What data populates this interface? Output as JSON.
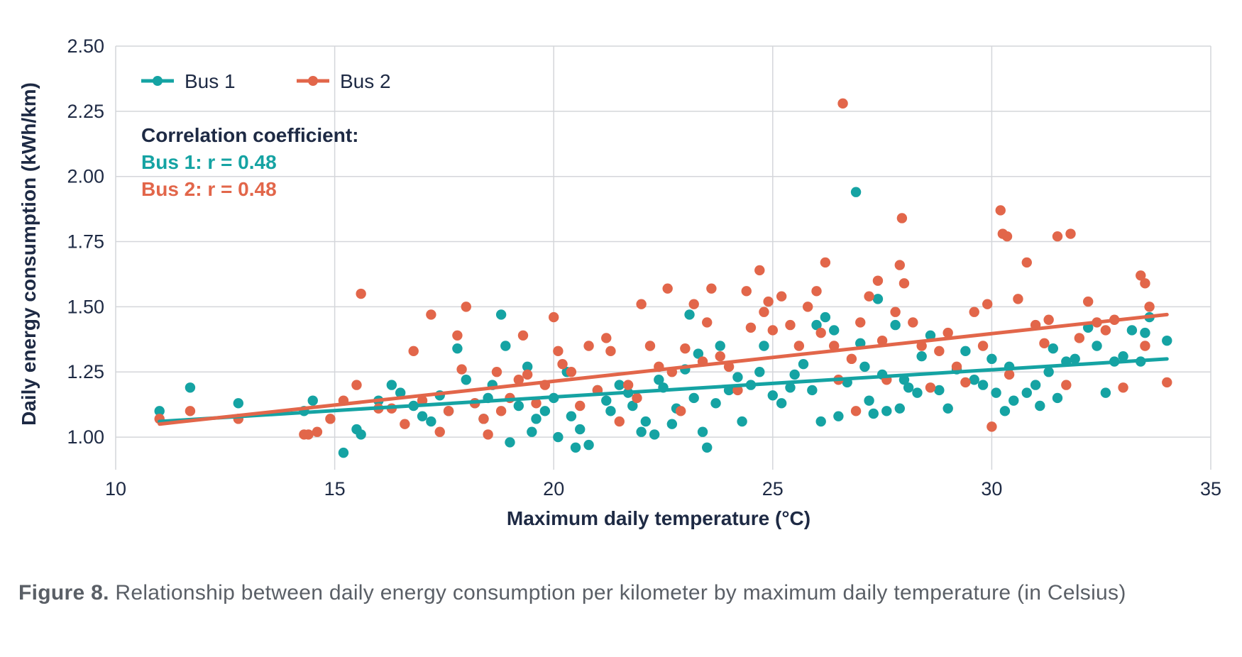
{
  "caption": {
    "label": "Figure 8.",
    "text": " Relationship between daily energy consumption per kilometer by maximum daily temperature (in Celsius)"
  },
  "annotation": {
    "heading": "Correlation coefficient:",
    "bus1": "Bus 1: r = 0.48",
    "bus2": "Bus 2: r = 0.48"
  },
  "chart_data": {
    "type": "scatter",
    "xlabel": "Maximum daily temperature (°C)",
    "ylabel": "Daily energy consumption (kWh/km)",
    "xlim": [
      10,
      35
    ],
    "ylim": [
      0.875,
      2.5
    ],
    "x_ticks": [
      "10",
      "15",
      "20",
      "25",
      "30",
      "35"
    ],
    "y_ticks": [
      "1.00",
      "1.25",
      "1.50",
      "1.75",
      "2.00",
      "2.25",
      "2.50"
    ],
    "grid": true,
    "legend_position": "top-left",
    "series": [
      {
        "name": "Bus 1",
        "color": "#15a3a3",
        "trend": [
          [
            11.0,
            1.06
          ],
          [
            34.0,
            1.3
          ]
        ],
        "points": [
          [
            11.0,
            1.1
          ],
          [
            11.7,
            1.19
          ],
          [
            12.8,
            1.13
          ],
          [
            14.3,
            1.1
          ],
          [
            14.5,
            1.14
          ],
          [
            15.2,
            0.94
          ],
          [
            15.5,
            1.03
          ],
          [
            15.6,
            1.01
          ],
          [
            16.0,
            1.14
          ],
          [
            16.3,
            1.2
          ],
          [
            16.5,
            1.17
          ],
          [
            16.8,
            1.12
          ],
          [
            17.0,
            1.08
          ],
          [
            17.2,
            1.06
          ],
          [
            17.4,
            1.16
          ],
          [
            17.6,
            1.1
          ],
          [
            17.8,
            1.34
          ],
          [
            18.0,
            1.22
          ],
          [
            18.2,
            1.13
          ],
          [
            18.4,
            1.07
          ],
          [
            18.5,
            1.15
          ],
          [
            18.6,
            1.2
          ],
          [
            18.8,
            1.47
          ],
          [
            18.9,
            1.35
          ],
          [
            19.0,
            0.98
          ],
          [
            19.2,
            1.12
          ],
          [
            19.4,
            1.27
          ],
          [
            19.5,
            1.02
          ],
          [
            19.6,
            1.07
          ],
          [
            19.8,
            1.1
          ],
          [
            20.0,
            1.15
          ],
          [
            20.1,
            1.0
          ],
          [
            20.3,
            1.25
          ],
          [
            20.4,
            1.08
          ],
          [
            20.5,
            0.96
          ],
          [
            20.6,
            1.03
          ],
          [
            20.8,
            0.97
          ],
          [
            21.0,
            1.18
          ],
          [
            21.2,
            1.14
          ],
          [
            21.3,
            1.1
          ],
          [
            21.5,
            1.2
          ],
          [
            21.7,
            1.17
          ],
          [
            21.8,
            1.12
          ],
          [
            22.0,
            1.02
          ],
          [
            22.1,
            1.06
          ],
          [
            22.3,
            1.01
          ],
          [
            22.4,
            1.22
          ],
          [
            22.5,
            1.19
          ],
          [
            22.7,
            1.05
          ],
          [
            22.8,
            1.11
          ],
          [
            23.0,
            1.26
          ],
          [
            23.1,
            1.47
          ],
          [
            23.2,
            1.15
          ],
          [
            23.3,
            1.32
          ],
          [
            23.4,
            1.02
          ],
          [
            23.5,
            0.96
          ],
          [
            23.7,
            1.13
          ],
          [
            23.8,
            1.35
          ],
          [
            24.0,
            1.18
          ],
          [
            24.2,
            1.23
          ],
          [
            24.3,
            1.06
          ],
          [
            24.5,
            1.2
          ],
          [
            24.7,
            1.25
          ],
          [
            24.8,
            1.35
          ],
          [
            25.0,
            1.16
          ],
          [
            25.2,
            1.13
          ],
          [
            25.4,
            1.19
          ],
          [
            25.5,
            1.24
          ],
          [
            25.7,
            1.28
          ],
          [
            25.9,
            1.18
          ],
          [
            26.0,
            1.43
          ],
          [
            26.1,
            1.06
          ],
          [
            26.2,
            1.46
          ],
          [
            26.4,
            1.41
          ],
          [
            26.5,
            1.08
          ],
          [
            26.7,
            1.21
          ],
          [
            26.9,
            1.94
          ],
          [
            27.0,
            1.36
          ],
          [
            27.1,
            1.27
          ],
          [
            27.2,
            1.14
          ],
          [
            27.3,
            1.09
          ],
          [
            27.4,
            1.53
          ],
          [
            27.5,
            1.24
          ],
          [
            27.6,
            1.1
          ],
          [
            27.8,
            1.43
          ],
          [
            27.9,
            1.11
          ],
          [
            28.0,
            1.22
          ],
          [
            28.1,
            1.19
          ],
          [
            28.3,
            1.17
          ],
          [
            28.4,
            1.31
          ],
          [
            28.6,
            1.39
          ],
          [
            28.8,
            1.18
          ],
          [
            29.0,
            1.11
          ],
          [
            29.2,
            1.26
          ],
          [
            29.4,
            1.33
          ],
          [
            29.6,
            1.22
          ],
          [
            29.8,
            1.2
          ],
          [
            30.0,
            1.3
          ],
          [
            30.1,
            1.17
          ],
          [
            30.3,
            1.1
          ],
          [
            30.4,
            1.27
          ],
          [
            30.5,
            1.14
          ],
          [
            30.8,
            1.17
          ],
          [
            31.0,
            1.2
          ],
          [
            31.1,
            1.12
          ],
          [
            31.3,
            1.25
          ],
          [
            31.4,
            1.34
          ],
          [
            31.5,
            1.15
          ],
          [
            31.7,
            1.29
          ],
          [
            31.9,
            1.3
          ],
          [
            32.2,
            1.42
          ],
          [
            32.4,
            1.35
          ],
          [
            32.6,
            1.17
          ],
          [
            32.8,
            1.29
          ],
          [
            33.0,
            1.31
          ],
          [
            33.2,
            1.41
          ],
          [
            33.4,
            1.29
          ],
          [
            33.5,
            1.4
          ],
          [
            33.6,
            1.46
          ],
          [
            34.0,
            1.37
          ]
        ]
      },
      {
        "name": "Bus 2",
        "color": "#e2664a",
        "trend": [
          [
            11.0,
            1.05
          ],
          [
            34.0,
            1.47
          ]
        ],
        "points": [
          [
            11.0,
            1.07
          ],
          [
            11.7,
            1.1
          ],
          [
            12.8,
            1.07
          ],
          [
            14.3,
            1.01
          ],
          [
            14.4,
            1.01
          ],
          [
            14.6,
            1.02
          ],
          [
            14.9,
            1.07
          ],
          [
            15.2,
            1.14
          ],
          [
            15.5,
            1.2
          ],
          [
            15.6,
            1.55
          ],
          [
            16.0,
            1.11
          ],
          [
            16.3,
            1.11
          ],
          [
            16.6,
            1.05
          ],
          [
            16.8,
            1.33
          ],
          [
            17.0,
            1.14
          ],
          [
            17.2,
            1.47
          ],
          [
            17.4,
            1.02
          ],
          [
            17.6,
            1.1
          ],
          [
            17.8,
            1.39
          ],
          [
            17.9,
            1.26
          ],
          [
            18.0,
            1.5
          ],
          [
            18.2,
            1.13
          ],
          [
            18.4,
            1.07
          ],
          [
            18.5,
            1.01
          ],
          [
            18.7,
            1.25
          ],
          [
            18.8,
            1.1
          ],
          [
            19.0,
            1.15
          ],
          [
            19.2,
            1.22
          ],
          [
            19.3,
            1.39
          ],
          [
            19.4,
            1.24
          ],
          [
            19.6,
            1.13
          ],
          [
            19.8,
            1.2
          ],
          [
            20.0,
            1.46
          ],
          [
            20.1,
            1.33
          ],
          [
            20.2,
            1.28
          ],
          [
            20.4,
            1.25
          ],
          [
            20.6,
            1.12
          ],
          [
            20.8,
            1.35
          ],
          [
            21.0,
            1.18
          ],
          [
            21.2,
            1.38
          ],
          [
            21.3,
            1.33
          ],
          [
            21.5,
            1.06
          ],
          [
            21.7,
            1.2
          ],
          [
            21.9,
            1.15
          ],
          [
            22.0,
            1.51
          ],
          [
            22.2,
            1.35
          ],
          [
            22.4,
            1.27
          ],
          [
            22.6,
            1.57
          ],
          [
            22.7,
            1.25
          ],
          [
            22.9,
            1.1
          ],
          [
            23.0,
            1.34
          ],
          [
            23.2,
            1.51
          ],
          [
            23.4,
            1.29
          ],
          [
            23.5,
            1.44
          ],
          [
            23.6,
            1.57
          ],
          [
            23.8,
            1.31
          ],
          [
            24.0,
            1.27
          ],
          [
            24.2,
            1.18
          ],
          [
            24.4,
            1.56
          ],
          [
            24.5,
            1.42
          ],
          [
            24.7,
            1.64
          ],
          [
            24.8,
            1.48
          ],
          [
            24.9,
            1.52
          ],
          [
            25.0,
            1.41
          ],
          [
            25.2,
            1.54
          ],
          [
            25.4,
            1.43
          ],
          [
            25.6,
            1.35
          ],
          [
            25.8,
            1.5
          ],
          [
            26.0,
            1.56
          ],
          [
            26.1,
            1.4
          ],
          [
            26.2,
            1.67
          ],
          [
            26.4,
            1.35
          ],
          [
            26.5,
            1.22
          ],
          [
            26.6,
            2.28
          ],
          [
            26.8,
            1.3
          ],
          [
            26.9,
            1.1
          ],
          [
            27.0,
            1.44
          ],
          [
            27.2,
            1.54
          ],
          [
            27.4,
            1.6
          ],
          [
            27.5,
            1.37
          ],
          [
            27.6,
            1.22
          ],
          [
            27.8,
            1.48
          ],
          [
            27.9,
            1.66
          ],
          [
            27.95,
            1.84
          ],
          [
            28.0,
            1.59
          ],
          [
            28.2,
            1.44
          ],
          [
            28.4,
            1.35
          ],
          [
            28.6,
            1.19
          ],
          [
            28.8,
            1.33
          ],
          [
            29.0,
            1.4
          ],
          [
            29.2,
            1.27
          ],
          [
            29.4,
            1.21
          ],
          [
            29.6,
            1.48
          ],
          [
            29.8,
            1.35
          ],
          [
            29.9,
            1.51
          ],
          [
            30.0,
            1.04
          ],
          [
            30.2,
            1.87
          ],
          [
            30.25,
            1.78
          ],
          [
            30.35,
            1.77
          ],
          [
            30.4,
            1.24
          ],
          [
            30.6,
            1.53
          ],
          [
            30.8,
            1.67
          ],
          [
            31.0,
            1.43
          ],
          [
            31.2,
            1.36
          ],
          [
            31.3,
            1.45
          ],
          [
            31.5,
            1.77
          ],
          [
            31.7,
            1.2
          ],
          [
            31.8,
            1.78
          ],
          [
            32.0,
            1.38
          ],
          [
            32.2,
            1.52
          ],
          [
            32.4,
            1.44
          ],
          [
            32.6,
            1.41
          ],
          [
            32.8,
            1.45
          ],
          [
            33.0,
            1.19
          ],
          [
            33.4,
            1.62
          ],
          [
            33.5,
            1.59
          ],
          [
            33.6,
            1.5
          ],
          [
            33.5,
            1.35
          ],
          [
            34.0,
            1.21
          ]
        ]
      }
    ]
  }
}
